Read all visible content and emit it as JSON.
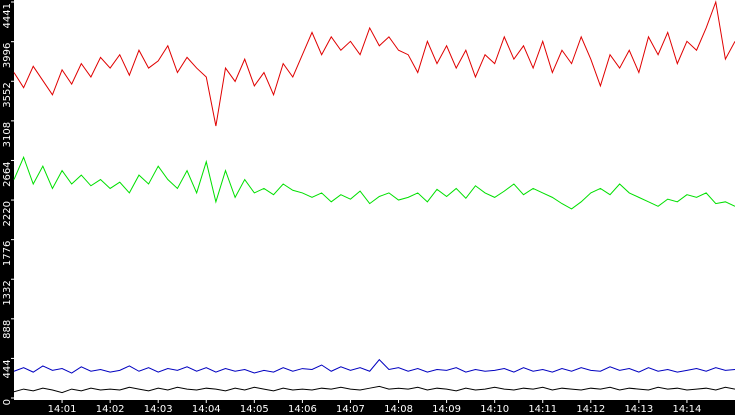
{
  "chart_data": {
    "type": "line",
    "x": [
      0,
      0.2,
      0.4,
      0.6,
      0.8,
      1,
      1.2,
      1.4,
      1.6,
      1.8,
      2,
      2.2,
      2.4,
      2.6,
      2.8,
      3,
      3.2,
      3.4,
      3.6,
      3.8,
      4,
      4.2,
      4.4,
      4.6,
      4.8,
      5,
      5.2,
      5.4,
      5.6,
      5.8,
      6,
      6.2,
      6.4,
      6.6,
      6.8,
      7,
      7.2,
      7.4,
      7.6,
      7.8,
      8,
      8.2,
      8.4,
      8.6,
      8.8,
      9,
      9.2,
      9.4,
      9.6,
      9.8,
      10,
      10.2,
      10.4,
      10.6,
      10.8,
      11,
      11.2,
      11.4,
      11.6,
      11.8,
      12,
      12.2,
      12.4,
      12.6,
      12.8,
      13,
      13.2,
      13.4,
      13.6,
      13.8,
      14,
      14.2,
      14.4,
      14.6,
      14.8,
      15
    ],
    "series": [
      {
        "color": "#e00000",
        "values": [
          3650,
          3480,
          3720,
          3560,
          3400,
          3680,
          3520,
          3750,
          3600,
          3820,
          3700,
          3850,
          3620,
          3900,
          3700,
          3780,
          3950,
          3650,
          3820,
          3700,
          3600,
          3050,
          3700,
          3550,
          3800,
          3500,
          3650,
          3400,
          3750,
          3600,
          3850,
          4100,
          3850,
          4050,
          3900,
          4000,
          3850,
          4150,
          3950,
          4050,
          3900,
          3850,
          3650,
          4000,
          3750,
          3950,
          3700,
          3900,
          3600,
          3850,
          3750,
          4050,
          3800,
          3950,
          3700,
          4000,
          3650,
          3900,
          3750,
          4050,
          3800,
          3500,
          3850,
          3700,
          3900,
          3650,
          4050,
          3850,
          4100,
          3750,
          4000,
          3900,
          4150,
          4441,
          3800,
          4000
        ]
      },
      {
        "color": "#00e000",
        "values": [
          2450,
          2700,
          2400,
          2600,
          2350,
          2550,
          2400,
          2500,
          2380,
          2450,
          2350,
          2420,
          2300,
          2500,
          2400,
          2600,
          2450,
          2350,
          2550,
          2300,
          2650,
          2200,
          2550,
          2250,
          2450,
          2300,
          2350,
          2280,
          2400,
          2330,
          2300,
          2250,
          2300,
          2200,
          2280,
          2230,
          2320,
          2180,
          2260,
          2300,
          2220,
          2250,
          2300,
          2200,
          2340,
          2260,
          2350,
          2240,
          2380,
          2300,
          2250,
          2320,
          2400,
          2280,
          2350,
          2300,
          2250,
          2180,
          2120,
          2200,
          2300,
          2350,
          2280,
          2400,
          2300,
          2250,
          2200,
          2150,
          2230,
          2200,
          2280,
          2250,
          2300,
          2180,
          2200,
          2150
        ]
      },
      {
        "color": "#0000c0",
        "values": [
          300,
          340,
          290,
          360,
          310,
          330,
          280,
          350,
          300,
          320,
          290,
          310,
          360,
          300,
          340,
          290,
          330,
          310,
          350,
          300,
          340,
          290,
          330,
          300,
          320,
          280,
          310,
          290,
          340,
          300,
          330,
          320,
          370,
          300,
          350,
          310,
          340,
          300,
          430,
          320,
          340,
          300,
          330,
          290,
          320,
          310,
          340,
          290,
          320,
          300,
          310,
          330,
          290,
          340,
          300,
          320,
          290,
          330,
          300,
          340,
          310,
          300,
          350,
          310,
          330,
          290,
          340,
          300,
          320,
          290,
          310,
          330,
          300,
          340,
          310,
          320
        ]
      },
      {
        "color": "#000000",
        "values": [
          70,
          100,
          80,
          110,
          90,
          60,
          100,
          80,
          110,
          90,
          100,
          90,
          120,
          100,
          80,
          110,
          90,
          120,
          100,
          90,
          110,
          100,
          80,
          110,
          90,
          120,
          100,
          80,
          110,
          90,
          100,
          90,
          110,
          100,
          120,
          100,
          90,
          110,
          130,
          100,
          110,
          100,
          120,
          90,
          110,
          100,
          80,
          110,
          90,
          100,
          120,
          100,
          90,
          110,
          100,
          120,
          90,
          110,
          100,
          90,
          110,
          100,
          120,
          90,
          110,
          100,
          90,
          120,
          100,
          110,
          90,
          100,
          110,
          90,
          120,
          100
        ]
      }
    ],
    "xlim": [
      0,
      15
    ],
    "xticks": [
      {
        "value": 1,
        "label": "14:01"
      },
      {
        "value": 2,
        "label": "14:02"
      },
      {
        "value": 3,
        "label": "14:03"
      },
      {
        "value": 4,
        "label": "14:04"
      },
      {
        "value": 5,
        "label": "14:05"
      },
      {
        "value": 6,
        "label": "14:06"
      },
      {
        "value": 7,
        "label": "14:07"
      },
      {
        "value": 8,
        "label": "14:08"
      },
      {
        "value": 9,
        "label": "14:09"
      },
      {
        "value": 10,
        "label": "14:10"
      },
      {
        "value": 11,
        "label": "14:11"
      },
      {
        "value": 12,
        "label": "14:12"
      },
      {
        "value": 13,
        "label": "14:13"
      },
      {
        "value": 14,
        "label": "14:14"
      }
    ],
    "ylim": [
      0,
      4441
    ],
    "yticks": [
      0,
      444,
      888,
      1332,
      1776,
      2220,
      2664,
      3108,
      3552,
      3996,
      4441
    ]
  }
}
